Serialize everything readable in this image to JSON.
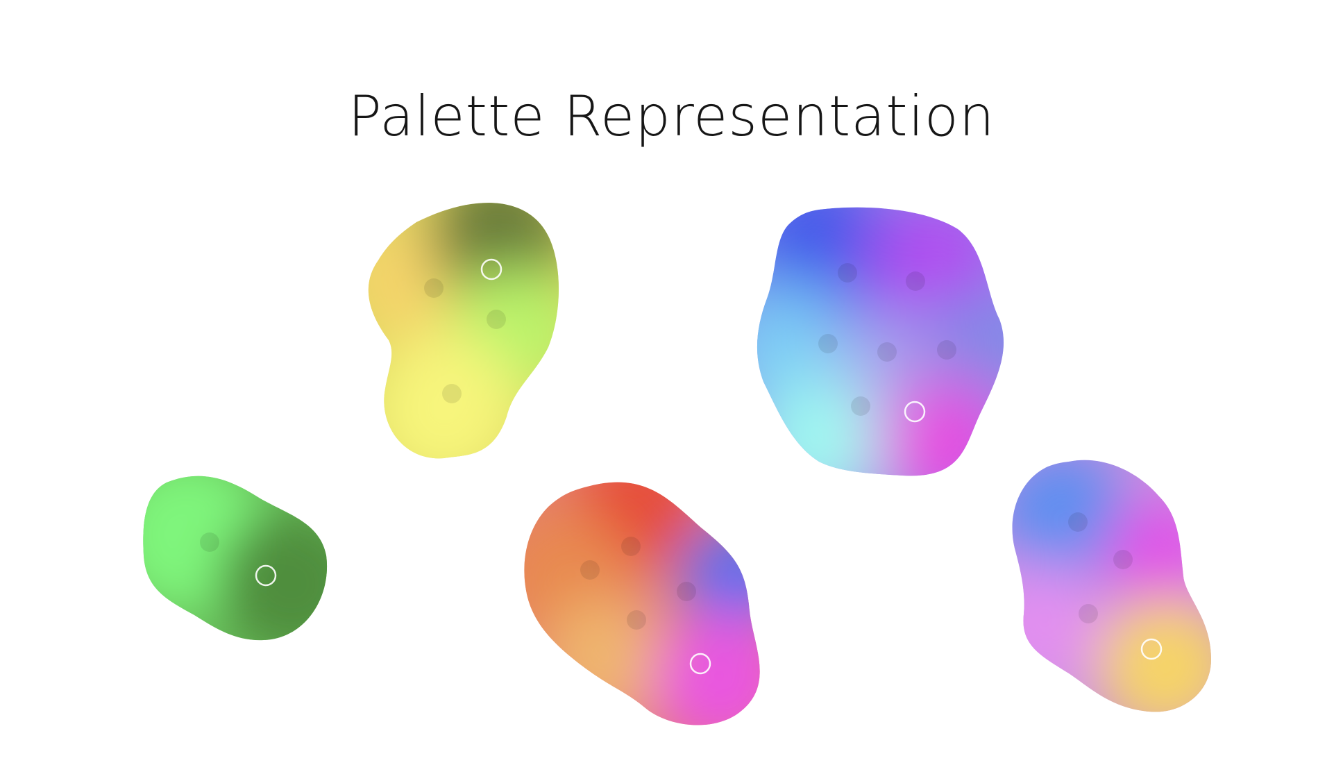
{
  "title": "Palette Representation",
  "palettes": [
    {
      "id": "palette-yellow-olive",
      "colors": [
        "#f5d46a",
        "#6b7c3b",
        "#b9f36a",
        "#f7f57c"
      ],
      "selected_color_index": 1
    },
    {
      "id": "palette-blue-violet",
      "colors": [
        "#3f56ea",
        "#b24cf0",
        "#7ccdf5",
        "#a6a6ee",
        "#7b8ae6",
        "#a0fbf0",
        "#e64ee0"
      ],
      "selected_color_index": 6
    },
    {
      "id": "palette-green",
      "colors": [
        "#7ff57c",
        "#4f8e3d"
      ],
      "selected_color_index": 1
    },
    {
      "id": "palette-warm-pink",
      "colors": [
        "#e64b38",
        "#e8894f",
        "#5c6ef0",
        "#efb56e",
        "#e956e0"
      ],
      "selected_color_index": 4
    },
    {
      "id": "palette-blue-pink-gold",
      "colors": [
        "#5f8ff0",
        "#e052e8",
        "#e28ff0",
        "#f6d468"
      ],
      "selected_color_index": 3
    }
  ]
}
